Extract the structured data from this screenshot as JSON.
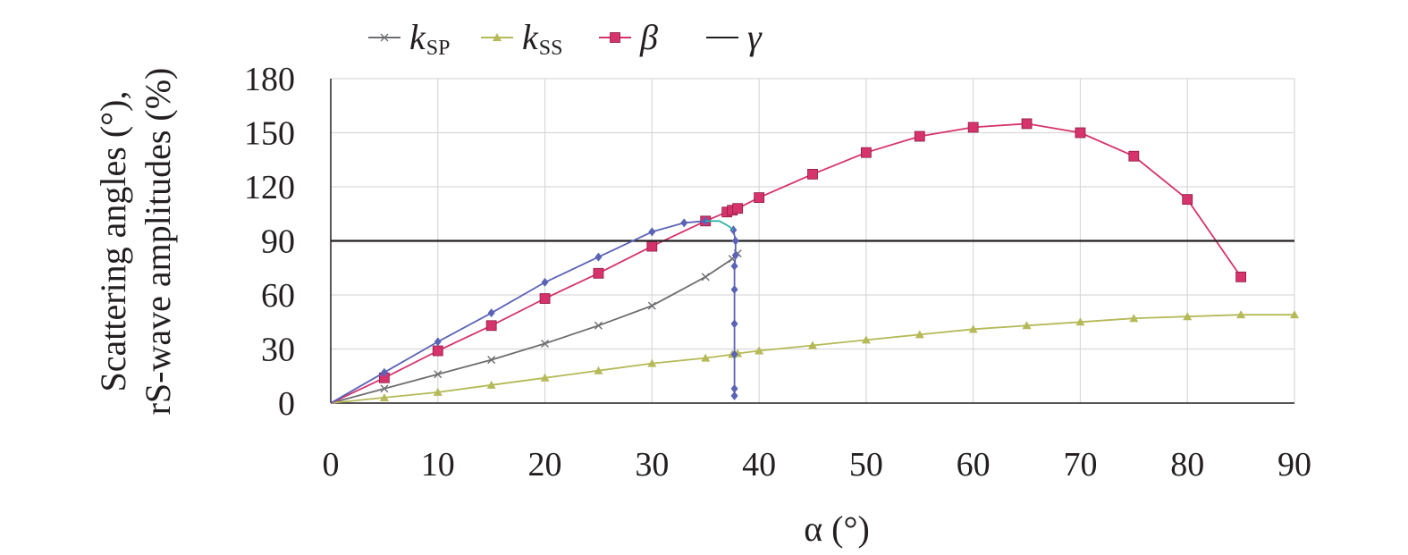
{
  "chart_data": {
    "type": "line",
    "xlabel": "α (°)",
    "ylabel_line1": "Scattering angles (°),",
    "ylabel_line2": "rS-wave amplitudes (%)",
    "xlim": [
      0,
      90
    ],
    "ylim": [
      0,
      180
    ],
    "x_ticks": [
      0,
      10,
      20,
      30,
      40,
      50,
      60,
      70,
      80,
      90
    ],
    "y_ticks": [
      0,
      30,
      60,
      90,
      120,
      150,
      180
    ],
    "grid": true,
    "legend_position": "top",
    "colors": {
      "k_sp": "#6d6e71",
      "k_ss": "#b5b957",
      "beta": "#d6336c",
      "gamma": "#231f20",
      "upper_branch": "#5b63b7",
      "vertical_branch": "#5b63b7",
      "cusp": "#2fb3a6"
    },
    "legend": [
      {
        "key": "k_sp",
        "label": "k",
        "sub": "SP"
      },
      {
        "key": "k_ss",
        "label": "k",
        "sub": "SS"
      },
      {
        "key": "beta",
        "label": "β",
        "sub": ""
      },
      {
        "key": "gamma",
        "label": "γ",
        "sub": ""
      }
    ],
    "series": [
      {
        "key": "k_sp",
        "marker": "x",
        "points": [
          [
            0,
            0
          ],
          [
            5,
            8
          ],
          [
            10,
            16
          ],
          [
            15,
            24
          ],
          [
            20,
            33
          ],
          [
            25,
            43
          ],
          [
            30,
            54
          ],
          [
            35,
            70
          ],
          [
            37.5,
            80
          ],
          [
            38,
            83
          ]
        ]
      },
      {
        "key": "k_ss",
        "marker": "triangle",
        "points": [
          [
            0,
            0
          ],
          [
            5,
            3
          ],
          [
            10,
            6
          ],
          [
            15,
            10
          ],
          [
            20,
            14
          ],
          [
            25,
            18
          ],
          [
            30,
            22
          ],
          [
            35,
            25
          ],
          [
            37.5,
            27
          ],
          [
            38,
            27.5
          ],
          [
            40,
            29
          ],
          [
            45,
            32
          ],
          [
            50,
            35
          ],
          [
            55,
            38
          ],
          [
            60,
            41
          ],
          [
            65,
            43
          ],
          [
            70,
            45
          ],
          [
            75,
            47
          ],
          [
            80,
            48
          ],
          [
            85,
            49
          ],
          [
            90,
            49
          ]
        ]
      },
      {
        "key": "beta",
        "marker": "square",
        "points": [
          [
            0,
            0
          ],
          [
            5,
            14
          ],
          [
            10,
            29
          ],
          [
            15,
            43
          ],
          [
            20,
            58
          ],
          [
            25,
            72
          ],
          [
            30,
            87
          ],
          [
            35,
            101
          ],
          [
            37,
            106
          ],
          [
            37.5,
            107
          ],
          [
            38,
            108
          ],
          [
            40,
            114
          ],
          [
            45,
            127
          ],
          [
            50,
            139
          ],
          [
            55,
            148
          ],
          [
            60,
            153
          ],
          [
            65,
            155
          ],
          [
            70,
            150
          ],
          [
            75,
            137
          ],
          [
            80,
            113
          ],
          [
            85,
            70
          ]
        ]
      },
      {
        "key": "gamma",
        "marker": "none",
        "points": [
          [
            0,
            90
          ],
          [
            90,
            90
          ]
        ]
      },
      {
        "key": "upper_branch",
        "marker": "diamond",
        "points": [
          [
            0,
            0
          ],
          [
            5,
            17
          ],
          [
            10,
            34
          ],
          [
            15,
            50
          ],
          [
            20,
            67
          ],
          [
            25,
            81
          ],
          [
            30,
            95
          ],
          [
            33,
            100
          ],
          [
            35,
            101
          ]
        ]
      },
      {
        "key": "vertical_branch",
        "marker": "diamond",
        "points": [
          [
            37.6,
            96
          ],
          [
            37.8,
            90
          ],
          [
            37.8,
            82
          ],
          [
            37.7,
            76
          ],
          [
            37.7,
            63
          ],
          [
            37.7,
            44
          ],
          [
            37.7,
            27
          ],
          [
            37.7,
            8
          ],
          [
            37.7,
            4
          ]
        ]
      },
      {
        "key": "cusp",
        "marker": "none",
        "points": [
          [
            35,
            101
          ],
          [
            36.3,
            101
          ],
          [
            37.2,
            98
          ],
          [
            37.6,
            96
          ]
        ]
      }
    ]
  }
}
